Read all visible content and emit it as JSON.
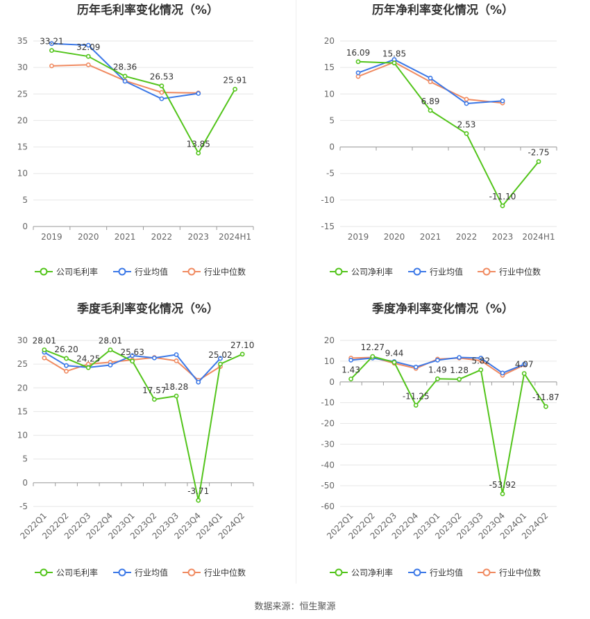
{
  "source_text": "数据来源：恒生聚源",
  "colors": {
    "company": "#52c41a",
    "avg": "#3b78e7",
    "median": "#f08a60"
  },
  "chart_data": [
    {
      "type": "line",
      "title": "历年毛利率变化情况（%）",
      "categories": [
        "2019",
        "2020",
        "2021",
        "2022",
        "2023",
        "2024H1"
      ],
      "ylim": [
        0,
        35
      ],
      "yticks": [
        0,
        5,
        10,
        15,
        20,
        25,
        30,
        35
      ],
      "grid": true,
      "legend_position": "bottom",
      "series": [
        {
          "name": "公司毛利率",
          "key": "company",
          "values": [
            33.21,
            32.09,
            28.36,
            26.53,
            13.85,
            25.91
          ],
          "labels": true
        },
        {
          "name": "行业均值",
          "key": "avg",
          "values": [
            34.5,
            34.2,
            27.4,
            24.1,
            25.1,
            null
          ],
          "labels": false
        },
        {
          "name": "行业中位数",
          "key": "median",
          "values": [
            30.3,
            30.5,
            27.5,
            25.3,
            25.2,
            null
          ],
          "labels": false
        }
      ]
    },
    {
      "type": "line",
      "title": "历年净利率变化情况（%）",
      "categories": [
        "2019",
        "2020",
        "2021",
        "2022",
        "2023",
        "2024H1"
      ],
      "ylim": [
        -15,
        20
      ],
      "yticks": [
        -15,
        -10,
        -5,
        0,
        5,
        10,
        15,
        20
      ],
      "grid": true,
      "legend_position": "bottom",
      "series": [
        {
          "name": "公司净利率",
          "key": "company",
          "values": [
            16.09,
            15.85,
            6.89,
            2.53,
            -11.1,
            -2.75
          ],
          "labels": true
        },
        {
          "name": "行业均值",
          "key": "avg",
          "values": [
            14.0,
            16.5,
            13.0,
            8.2,
            8.7,
            null
          ],
          "labels": false
        },
        {
          "name": "行业中位数",
          "key": "median",
          "values": [
            13.3,
            16.0,
            12.3,
            9.0,
            8.3,
            null
          ],
          "labels": false
        }
      ]
    },
    {
      "type": "line",
      "title": "季度毛利率变化情况（%）",
      "categories": [
        "2022Q1",
        "2022Q2",
        "2022Q3",
        "2022Q4",
        "2023Q1",
        "2023Q2",
        "2023Q3",
        "2023Q4",
        "2024Q1",
        "2024Q2"
      ],
      "ylim": [
        -5,
        30
      ],
      "yticks": [
        -5,
        0,
        5,
        10,
        15,
        20,
        25,
        30
      ],
      "grid": true,
      "legend_position": "bottom",
      "series": [
        {
          "name": "公司毛利率",
          "key": "company",
          "values": [
            28.01,
            26.2,
            24.25,
            28.01,
            25.63,
            17.57,
            18.28,
            -3.71,
            25.02,
            27.1
          ],
          "labels": true
        },
        {
          "name": "行业均值",
          "key": "avg",
          "values": [
            27.5,
            24.7,
            24.3,
            24.8,
            26.8,
            26.3,
            27.0,
            21.2,
            26.2,
            null
          ],
          "labels": false
        },
        {
          "name": "行业中位数",
          "key": "median",
          "values": [
            26.3,
            23.5,
            25.0,
            25.4,
            25.9,
            26.4,
            25.7,
            21.6,
            24.5,
            null
          ],
          "labels": false
        }
      ]
    },
    {
      "type": "line",
      "title": "季度净利率变化情况（%）",
      "categories": [
        "2022Q1",
        "2022Q2",
        "2022Q3",
        "2022Q4",
        "2023Q1",
        "2023Q2",
        "2023Q3",
        "2023Q4",
        "2024Q1",
        "2024Q2"
      ],
      "ylim": [
        -60,
        20
      ],
      "yticks": [
        -60,
        -50,
        -40,
        -30,
        -20,
        -10,
        0,
        10,
        20
      ],
      "grid": true,
      "legend_position": "bottom",
      "series": [
        {
          "name": "公司净利率",
          "key": "company",
          "values": [
            1.43,
            12.27,
            9.44,
            -11.25,
            1.49,
            1.28,
            5.82,
            -53.92,
            4.07,
            -11.87
          ],
          "labels": true
        },
        {
          "name": "行业均值",
          "key": "avg",
          "values": [
            10.5,
            11.5,
            9.8,
            7.2,
            10.5,
            11.8,
            11.5,
            4.3,
            8.5,
            null
          ],
          "labels": false
        },
        {
          "name": "行业中位数",
          "key": "median",
          "values": [
            11.5,
            11.8,
            9.0,
            6.5,
            11.0,
            11.5,
            10.3,
            3.2,
            8.2,
            null
          ],
          "labels": false
        }
      ]
    }
  ]
}
